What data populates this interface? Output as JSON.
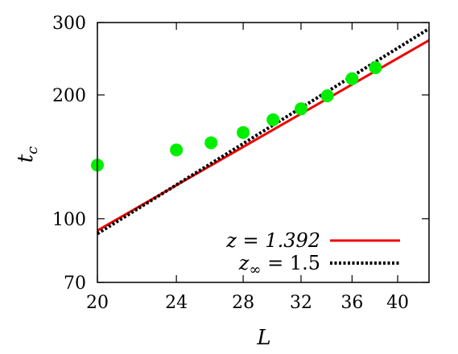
{
  "chart_data": {
    "type": "scatter",
    "xlabel": "L",
    "ylabel": "t_c",
    "xlim": [
      20,
      43
    ],
    "ylim": [
      70,
      300
    ],
    "x_scale": "log",
    "y_scale": "log",
    "x_ticks": [
      "20",
      "24",
      "28",
      "32",
      "36",
      "40"
    ],
    "y_ticks": [
      "70",
      "100",
      "200",
      "300"
    ],
    "points": [
      {
        "x": 20,
        "y": 135
      },
      {
        "x": 24,
        "y": 147
      },
      {
        "x": 26,
        "y": 153
      },
      {
        "x": 28,
        "y": 162
      },
      {
        "x": 30,
        "y": 174
      },
      {
        "x": 32,
        "y": 185
      },
      {
        "x": 34,
        "y": 199
      },
      {
        "x": 36,
        "y": 219
      },
      {
        "x": 38,
        "y": 233
      }
    ],
    "point_color": "#00ee00",
    "fits": [
      {
        "name": "z = 1.392",
        "label_main": "z = 1.392",
        "label_sub": "",
        "label_rest": "",
        "exponent": 1.392,
        "anchor": {
          "x": 32,
          "y": 180
        },
        "color": "#ee0000",
        "style": "solid"
      },
      {
        "name": "z∞ = 1.5",
        "label_main": "z",
        "label_sub": "∞",
        "label_rest": " = 1.5",
        "exponent": 1.5,
        "anchor": {
          "x": 36,
          "y": 222
        },
        "color": "#000000",
        "style": "dotted"
      }
    ],
    "legend_position": "bottom-right",
    "grid": false
  }
}
